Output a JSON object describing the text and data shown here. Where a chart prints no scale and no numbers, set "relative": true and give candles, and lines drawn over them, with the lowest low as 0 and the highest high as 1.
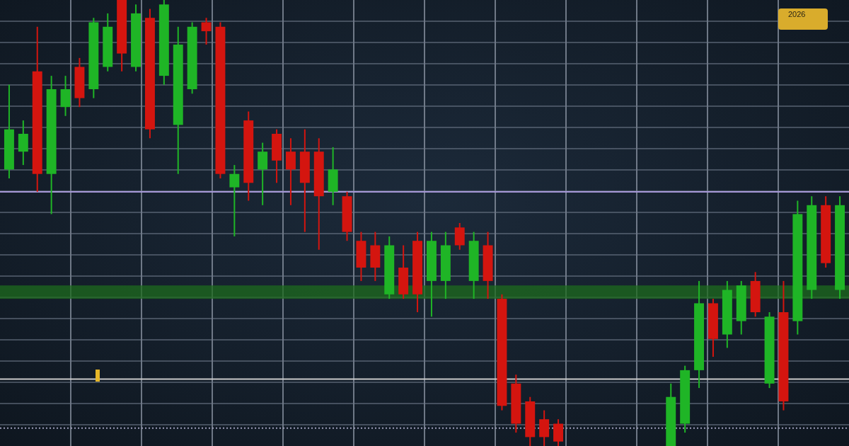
{
  "chart_data": {
    "type": "candlestick",
    "relative": true,
    "grid": true,
    "categories": [
      null,
      null,
      null,
      null,
      null,
      null,
      null,
      null,
      null,
      null,
      null,
      null,
      null,
      null,
      null,
      null,
      null,
      null,
      null,
      null,
      null,
      null,
      null,
      null,
      null,
      null,
      null,
      null,
      null,
      null,
      null,
      null,
      null,
      null,
      null,
      null,
      null,
      null,
      null,
      null,
      null,
      null,
      null,
      null,
      null,
      null,
      null,
      null,
      null,
      null,
      null,
      null,
      null,
      null,
      null,
      null,
      null,
      null,
      null,
      null
    ],
    "ohlc": [
      [
        0.62,
        0.81,
        0.6,
        0.71
      ],
      [
        0.66,
        0.73,
        0.63,
        0.7
      ],
      [
        0.84,
        0.94,
        0.57,
        0.61
      ],
      [
        0.61,
        0.83,
        0.52,
        0.8
      ],
      [
        0.76,
        0.83,
        0.74,
        0.8
      ],
      [
        0.85,
        0.87,
        0.76,
        0.78
      ],
      [
        0.8,
        0.96,
        0.78,
        0.95
      ],
      [
        0.85,
        0.97,
        0.84,
        0.94
      ],
      [
        1,
        1,
        0.84,
        0.88
      ],
      [
        0.85,
        0.99,
        0.84,
        0.97
      ],
      [
        0.96,
        0.98,
        0.69,
        0.71
      ],
      [
        0.83,
        1,
        0.81,
        0.99
      ],
      [
        0.72,
        0.94,
        0.61,
        0.9
      ],
      [
        0.8,
        0.95,
        0.79,
        0.94
      ],
      [
        0.95,
        0.96,
        0.9,
        0.93
      ],
      [
        0.94,
        0.95,
        0.6,
        0.61
      ],
      [
        0.58,
        0.63,
        0.47,
        0.61
      ],
      [
        0.73,
        0.75,
        0.55,
        0.59
      ],
      [
        0.62,
        0.68,
        0.54,
        0.66
      ],
      [
        0.7,
        0.71,
        0.59,
        0.64
      ],
      [
        0.66,
        0.69,
        0.54,
        0.62
      ],
      [
        0.66,
        0.71,
        0.48,
        0.59
      ],
      [
        0.66,
        0.69,
        0.44,
        0.56
      ],
      [
        0.57,
        0.67,
        0.54,
        0.62
      ],
      [
        0.56,
        0.57,
        0.46,
        0.48
      ],
      [
        0.46,
        0.48,
        0.37,
        0.4
      ],
      [
        0.45,
        0.48,
        0.37,
        0.4
      ],
      [
        0.34,
        0.47,
        0.33,
        0.45
      ],
      [
        0.4,
        0.45,
        0.33,
        0.34
      ],
      [
        0.46,
        0.48,
        0.3,
        0.34
      ],
      [
        0.37,
        0.48,
        0.29,
        0.46
      ],
      [
        0.37,
        0.48,
        0.33,
        0.45
      ],
      [
        0.49,
        0.5,
        0.44,
        0.45
      ],
      [
        0.37,
        0.48,
        0.33,
        0.46
      ],
      [
        0.45,
        0.48,
        0.33,
        0.37
      ],
      [
        0.33,
        0.34,
        0.08,
        0.09
      ],
      [
        0.14,
        0.16,
        0.03,
        0.05
      ],
      [
        0.1,
        0.11,
        0,
        0.02
      ],
      [
        0.06,
        0.08,
        0,
        0.02
      ],
      [
        0.05,
        0.06,
        0,
        0.01
      ],
      null,
      null,
      null,
      null,
      null,
      null,
      null,
      [
        0,
        0.14,
        0,
        0.11
      ],
      [
        0.05,
        0.18,
        0.03,
        0.17
      ],
      [
        0.17,
        0.37,
        0.13,
        0.32
      ],
      [
        0.32,
        0.33,
        0.2,
        0.24
      ],
      [
        0.25,
        0.37,
        0.22,
        0.35
      ],
      [
        0.28,
        0.37,
        0.25,
        0.36
      ],
      [
        0.37,
        0.39,
        0.29,
        0.3
      ],
      [
        0.14,
        0.3,
        0.13,
        0.29
      ],
      [
        0.3,
        0.37,
        0.08,
        0.1
      ],
      [
        0.28,
        0.55,
        0.25,
        0.52
      ],
      [
        0.35,
        0.56,
        0.33,
        0.54
      ],
      [
        0.54,
        0.56,
        0.4,
        0.41
      ],
      [
        0.35,
        0.56,
        0.33,
        0.54
      ]
    ],
    "colors": [
      "#1fb526",
      "#1fb526",
      "#d4150f",
      "#1fb526",
      "#1fb526",
      "#d4150f",
      "#1fb526",
      "#1fb526",
      "#d4150f",
      "#1fb526",
      "#d4150f",
      "#1fb526",
      "#1fb526",
      "#1fb526",
      "#d4150f",
      "#d4150f",
      "#1fb526",
      "#d4150f",
      "#1fb526",
      "#d4150f",
      "#d4150f",
      "#d4150f",
      "#d4150f",
      "#1fb526",
      "#d4150f",
      "#d4150f",
      "#d4150f",
      "#1fb526",
      "#d4150f",
      "#d4150f",
      "#1fb526",
      "#1fb526",
      "#d4150f",
      "#1fb526",
      "#d4150f",
      "#d4150f",
      "#d4150f",
      "#d4150f",
      "#d4150f",
      "#d4150f",
      null,
      null,
      null,
      null,
      null,
      null,
      null,
      "#1fb526",
      "#1fb526",
      "#1fb526",
      "#d4150f",
      "#1fb526",
      "#1fb526",
      "#d4150f",
      "#1fb526",
      "#d4150f",
      "#1fb526",
      "#1fb526",
      "#d4150f",
      "#1fb526"
    ],
    "ref_lines": [
      {
        "axis": "y",
        "value": 0.57,
        "color": "#a597d6"
      },
      {
        "axis": "y",
        "value": 0.15,
        "color": "#c9c9c9"
      },
      {
        "axis": "y",
        "value": 0.04,
        "color": "#9c9cb8",
        "line_style": "dotted"
      }
    ],
    "bands": [
      {
        "axis": "y",
        "from": 0.33,
        "to": 0.36,
        "color": "#1d6b1d"
      }
    ],
    "annotations": [
      "2026"
    ]
  }
}
